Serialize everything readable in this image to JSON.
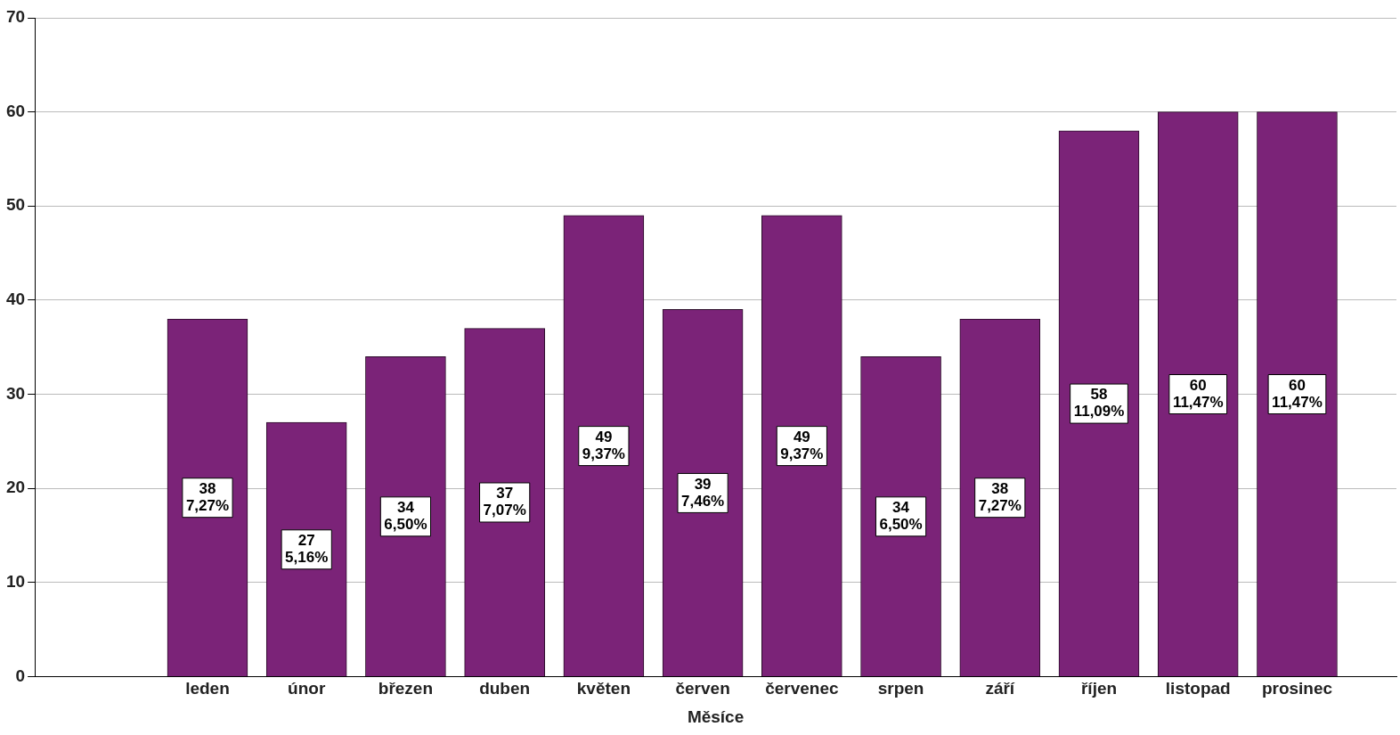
{
  "chart_data": {
    "type": "bar",
    "xlabel": "Měsíce",
    "categories": [
      "leden",
      "únor",
      "březen",
      "duben",
      "květen",
      "červen",
      "červenec",
      "srpen",
      "září",
      "říjen",
      "listopad",
      "prosinec"
    ],
    "values": [
      38,
      27,
      34,
      37,
      49,
      39,
      49,
      34,
      38,
      58,
      60,
      60
    ],
    "value_labels": [
      "38\n7,27%",
      "27\n5,16%",
      "34\n6,50%",
      "37\n7,07%",
      "49\n9,37%",
      "39\n7,46%",
      "49\n9,37%",
      "34\n6,50%",
      "38\n7,27%",
      "58\n11,09%",
      "60\n11,47%",
      "60\n11,47%"
    ],
    "color": "#7b2378",
    "ylim": [
      0,
      70
    ],
    "yticks": [
      0,
      10,
      20,
      30,
      40,
      50,
      60,
      70
    ],
    "grid": "y",
    "legend": false
  }
}
